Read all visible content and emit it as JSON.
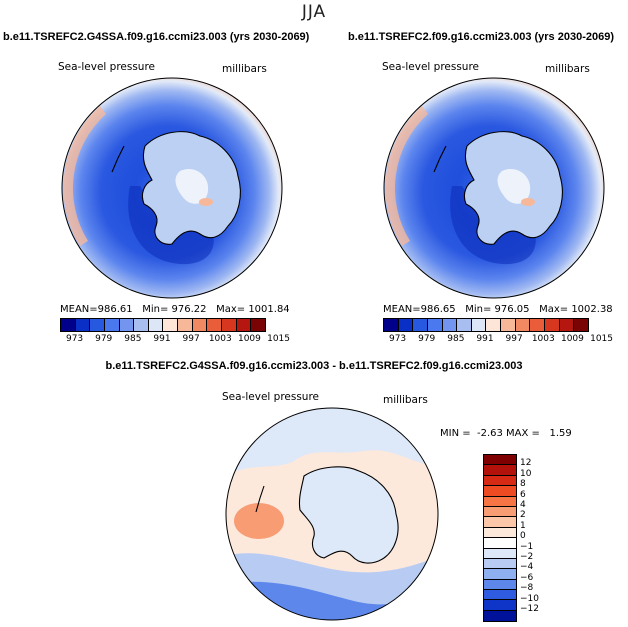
{
  "season": "JJA",
  "panels": [
    {
      "title": "b.e11.TSREFC2.G4SSA.f09.g16.ccmi23.003 (yrs 2030-2069)",
      "variable": "Sea-level pressure",
      "units": "millibars",
      "mean_label": "MEAN=",
      "mean": "986.61",
      "min_label": "Min=",
      "min": "976.22",
      "max_label": "Max=",
      "max": "1001.84"
    },
    {
      "title": "b.e11.TSREFC2.f09.g16.ccmi23.003 (yrs 2030-2069)",
      "variable": "Sea-level pressure",
      "units": "millibars",
      "mean_label": "MEAN=",
      "mean": "986.65",
      "min_label": "Min=",
      "min": "976.05",
      "max_label": "Max=",
      "max": "1002.38"
    }
  ],
  "abs_colorbar": {
    "colors": [
      "#00008b",
      "#0a2fc7",
      "#2658e0",
      "#4a78ee",
      "#7495ef",
      "#a8bdf0",
      "#dde6f6",
      "#fde6d8",
      "#f7b89a",
      "#f18a62",
      "#e95d3a",
      "#d8371f",
      "#b51710",
      "#7a0404"
    ],
    "tick_labels": [
      "973",
      "979",
      "985",
      "991",
      "997",
      "1003",
      "1009",
      "1015"
    ]
  },
  "diff_panel": {
    "title": "b.e11.TSREFC2.G4SSA.f09.g16.ccmi23.003 - b.e11.TSREFC2.f09.g16.ccmi23.003",
    "variable": "Sea-level pressure",
    "units": "millibars",
    "min_label": "MIN =",
    "min": "-2.63",
    "max_label": "MAX =",
    "max": "1.59"
  },
  "diff_colorbar": {
    "colors": [
      "#7f0000",
      "#b3120a",
      "#d62a14",
      "#ee4b22",
      "#f77445",
      "#f89c74",
      "#fcc6a8",
      "#fde8dc",
      "#ffffff",
      "#dde8f8",
      "#b8ccf3",
      "#8fb0f0",
      "#5d87ea",
      "#2e5be0",
      "#0f35c8",
      "#00129a"
    ],
    "tick_labels": [
      "12",
      "10",
      "8",
      "6",
      "4",
      "2",
      "1",
      "0",
      "−1",
      "−2",
      "−4",
      "−6",
      "−8",
      "−10",
      "−12"
    ]
  }
}
